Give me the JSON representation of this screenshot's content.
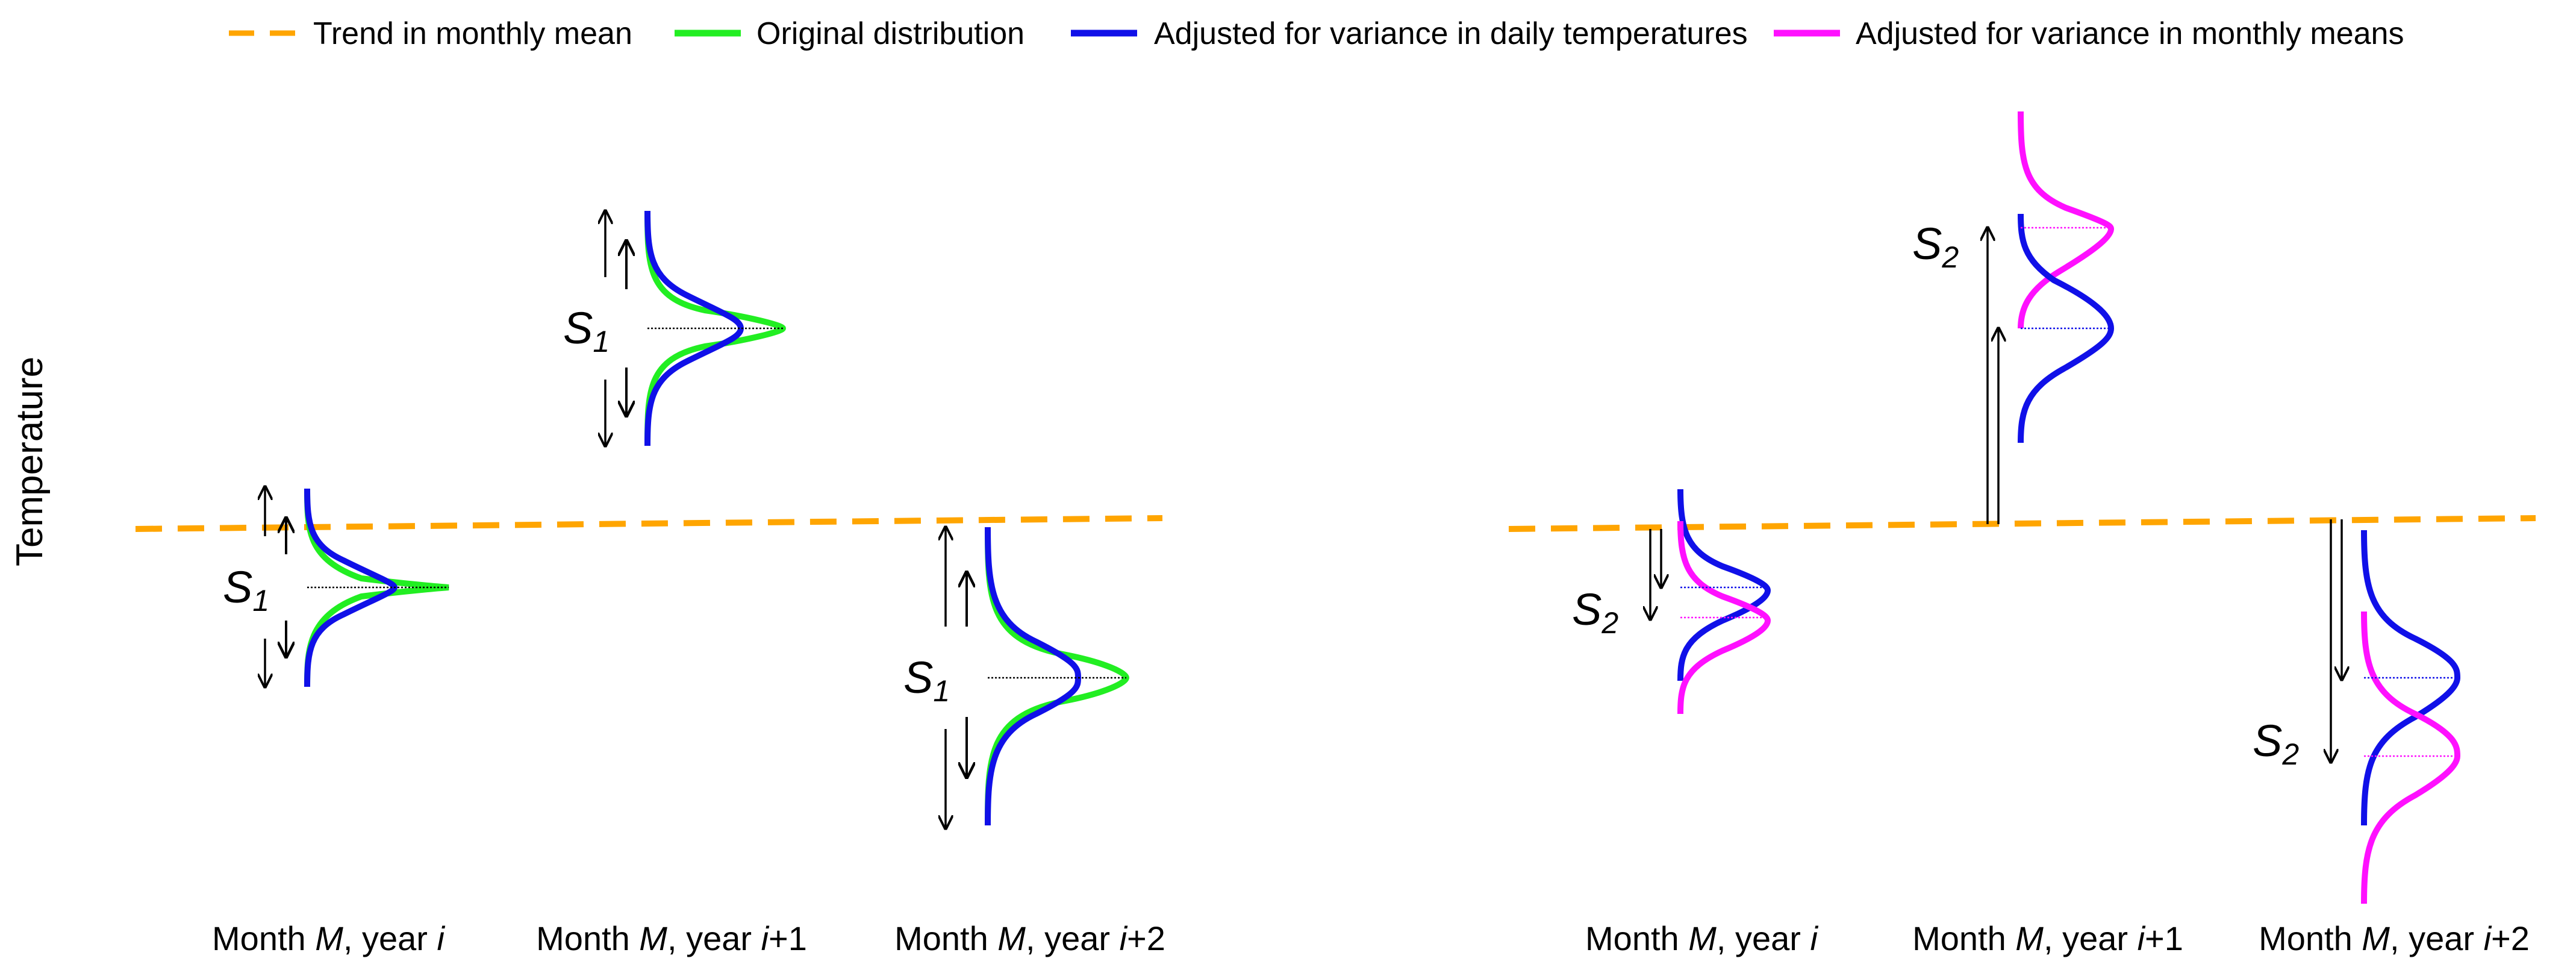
{
  "legend": {
    "items": [
      {
        "key": "trend",
        "label": "Trend in monthly mean",
        "color": "#FFA500",
        "style": "dashed"
      },
      {
        "key": "original",
        "label": "Original distribution",
        "color": "#22EE22",
        "style": "solid"
      },
      {
        "key": "daily",
        "label": "Adjusted for variance in daily temperatures",
        "color": "#1010E8",
        "style": "solid"
      },
      {
        "key": "monthly",
        "label": "Adjusted for variance in monthly means",
        "color": "#FF10FF",
        "style": "solid"
      }
    ]
  },
  "axis": {
    "ylabel": "Temperature"
  },
  "left_panel": {
    "symbol": "S",
    "subscript": "1",
    "months": [
      {
        "pre": "Month ",
        "M": "M",
        "mid": ", year ",
        "year": "i",
        "suffix": ""
      },
      {
        "pre": "Month ",
        "M": "M",
        "mid": ", year ",
        "year": "i",
        "suffix": "+1"
      },
      {
        "pre": "Month ",
        "M": "M",
        "mid": ", year ",
        "year": "i",
        "suffix": "+2"
      }
    ]
  },
  "right_panel": {
    "symbol": "S",
    "subscript": "2",
    "months": [
      {
        "pre": "Month ",
        "M": "M",
        "mid": ", year ",
        "year": "i",
        "suffix": ""
      },
      {
        "pre": "Month ",
        "M": "M",
        "mid": ", year ",
        "year": "i",
        "suffix": "+1"
      },
      {
        "pre": "Month ",
        "M": "M",
        "mid": ", year ",
        "year": "i",
        "suffix": "+2"
      }
    ]
  }
}
